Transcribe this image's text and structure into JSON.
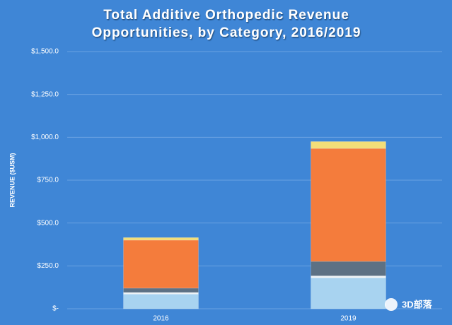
{
  "chart_data": {
    "type": "stacked_bar",
    "title": "Total Additive Orthopedic Revenue",
    "subtitle": "Opportunities, by Category, 2016/2019",
    "y_label": "REVENUE ($USM)",
    "categories": [
      "2016",
      "2019"
    ],
    "series": [
      {
        "color": "#a8d3f0",
        "values": [
          85,
          180
        ]
      },
      {
        "color": "#eef3f6",
        "values": [
          10,
          12
        ]
      },
      {
        "color": "#5d7184",
        "values": [
          25,
          84
        ]
      },
      {
        "color": "#f47c3c",
        "values": [
          280,
          659
        ]
      },
      {
        "color": "#f3de78",
        "values": [
          15,
          40
        ]
      }
    ],
    "ylim": [
      0,
      1500
    ],
    "yticks": [
      {
        "value": 0,
        "label": "$-"
      },
      {
        "value": 250,
        "label": "$250.0"
      },
      {
        "value": 500,
        "label": "$500.0"
      },
      {
        "value": 750,
        "label": "$750.0"
      },
      {
        "value": 1000,
        "label": "$1,000.0"
      },
      {
        "value": 1250,
        "label": "$1,250.0"
      },
      {
        "value": 1500,
        "label": "$1,500.0"
      }
    ],
    "grid": true,
    "watermark": "3D部落"
  }
}
